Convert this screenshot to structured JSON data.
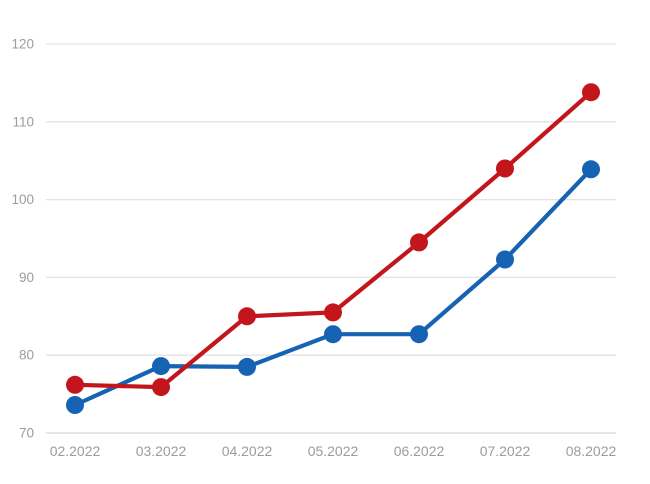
{
  "chart_data": {
    "type": "line",
    "title": "",
    "xlabel": "",
    "ylabel": "",
    "categories": [
      "02.2022",
      "03.2022",
      "04.2022",
      "05.2022",
      "06.2022",
      "07.2022",
      "08.2022"
    ],
    "series": [
      {
        "name": "blue-series",
        "color": "#1563b2",
        "values": [
          73.6,
          78.6,
          78.5,
          82.7,
          82.7,
          92.3,
          103.9
        ]
      },
      {
        "name": "red-series",
        "color": "#c3161c",
        "values": [
          76.2,
          75.9,
          85.0,
          85.5,
          94.5,
          104.0,
          113.8
        ]
      }
    ],
    "ylim": [
      70,
      120
    ],
    "yticks": [
      70,
      80,
      90,
      100,
      110,
      120
    ],
    "grid": true,
    "legend": "none",
    "background_color": "#ffffff",
    "gridline_color": "#e3e3e3",
    "baseline_color": "#d7d7d7",
    "axis_label_color": "#9c9c9c"
  }
}
